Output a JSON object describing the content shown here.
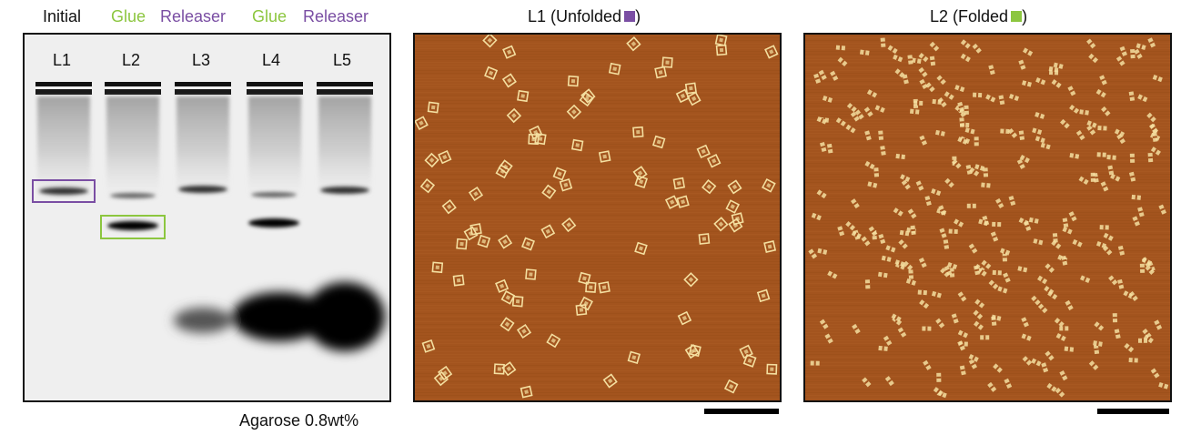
{
  "gel_header": {
    "lane_conditions": [
      {
        "text": "Initial",
        "color": "#111111"
      },
      {
        "text": "Glue",
        "color": "#8cc63f"
      },
      {
        "text": "Releaser",
        "color": "#7a4ea3"
      },
      {
        "text": "Glue",
        "color": "#8cc63f"
      },
      {
        "text": "Releaser",
        "color": "#7a4ea3"
      }
    ]
  },
  "gel": {
    "lanes": [
      "L1",
      "L2",
      "L3",
      "L4",
      "L5"
    ],
    "caption": "Agarose 0.8wt%",
    "highlight_colors": {
      "unfolded": "#7a4ea3",
      "folded": "#8cc63f"
    }
  },
  "afm_panels": [
    {
      "title": "L1 (Unfolded",
      "title_end": ")",
      "swatch_color": "#7a4ea3"
    },
    {
      "title": "L2 (Folded",
      "title_end": ")",
      "swatch_color": "#8cc63f"
    }
  ],
  "colors": {
    "afm_background": "#a3541e",
    "afm_particle": "#f4dfa0"
  }
}
